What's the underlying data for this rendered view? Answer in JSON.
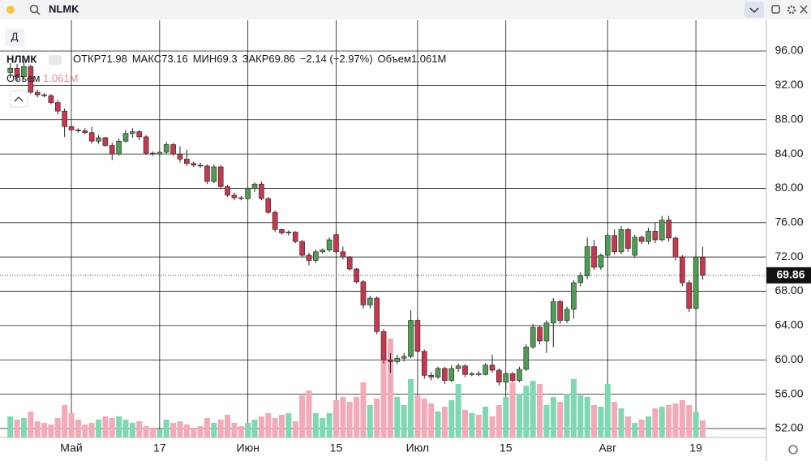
{
  "toolbar": {
    "symbol": "NLMK",
    "interval": "Д"
  },
  "legend": {
    "name": "НЛМК",
    "open_label": "ОТКР",
    "high_label": "МАКС",
    "low_label": "МИН",
    "close_label": "ЗАКР",
    "change": "−2.14 (−2.97%)",
    "volume_label": "Объем",
    "volume_value": "1.061M",
    "volume_pane_label": "Объем",
    "volume_pane_value": "1.061M"
  },
  "chart_data": {
    "type": "candlestick",
    "categories": [
      null,
      null,
      null,
      null,
      null,
      null,
      null,
      null,
      null,
      "Май",
      null,
      null,
      null,
      null,
      null,
      null,
      null,
      null,
      null,
      null,
      null,
      null,
      "17",
      null,
      null,
      null,
      null,
      null,
      null,
      null,
      null,
      null,
      null,
      null,
      null,
      "Июн",
      null,
      null,
      null,
      null,
      null,
      null,
      null,
      null,
      null,
      null,
      null,
      null,
      "15",
      null,
      null,
      null,
      null,
      null,
      null,
      null,
      null,
      null,
      null,
      null,
      "Июл",
      null,
      null,
      null,
      null,
      null,
      null,
      null,
      null,
      null,
      null,
      null,
      null,
      "15",
      null,
      null,
      null,
      null,
      null,
      null,
      null,
      null,
      null,
      null,
      null,
      null,
      null,
      null,
      "Авг",
      null,
      null,
      null,
      null,
      null,
      null,
      null,
      null,
      null,
      null,
      null,
      null,
      "19",
      null
    ],
    "ohlc": [
      [
        93.5,
        94.6,
        92.8,
        94.0
      ],
      [
        94.0,
        94.5,
        92.5,
        93.0
      ],
      [
        93.0,
        94.8,
        92.8,
        94.2
      ],
      [
        94.2,
        94.4,
        91.0,
        91.2
      ],
      [
        91.2,
        91.5,
        90.6,
        90.9
      ],
      [
        90.9,
        91.1,
        90.6,
        90.8
      ],
      [
        90.8,
        91.0,
        89.8,
        90.0
      ],
      [
        90.0,
        90.3,
        88.6,
        89.0
      ],
      [
        89.0,
        89.3,
        86.0,
        87.2
      ],
      [
        87.2,
        87.6,
        86.5,
        86.8
      ],
      [
        86.8,
        87.0,
        86.5,
        86.7
      ],
      [
        86.7,
        87.0,
        86.3,
        86.5
      ],
      [
        86.5,
        87.2,
        85.2,
        85.5
      ],
      [
        85.5,
        86.2,
        85.2,
        85.9
      ],
      [
        85.9,
        86.0,
        84.8,
        85.0
      ],
      [
        85.0,
        85.3,
        83.3,
        84.0
      ],
      [
        84.0,
        85.8,
        83.8,
        85.5
      ],
      [
        85.5,
        86.8,
        85.3,
        86.4
      ],
      [
        86.4,
        87.0,
        85.9,
        86.6
      ],
      [
        86.6,
        86.8,
        85.6,
        86.0
      ],
      [
        86.0,
        86.2,
        83.9,
        84.1
      ],
      [
        84.1,
        84.3,
        83.8,
        84.0
      ],
      [
        84.0,
        84.4,
        83.7,
        84.2
      ],
      [
        84.2,
        85.4,
        84.0,
        85.1
      ],
      [
        85.1,
        85.3,
        83.8,
        84.0
      ],
      [
        84.0,
        84.9,
        83.0,
        83.4
      ],
      [
        83.4,
        84.5,
        82.6,
        82.9
      ],
      [
        82.9,
        83.1,
        82.5,
        82.7
      ],
      [
        82.7,
        83.0,
        82.4,
        82.6
      ],
      [
        82.6,
        82.8,
        80.5,
        80.8
      ],
      [
        80.8,
        82.8,
        80.6,
        82.5
      ],
      [
        82.5,
        82.7,
        80.0,
        80.2
      ],
      [
        80.2,
        80.4,
        79.0,
        79.2
      ],
      [
        79.2,
        79.5,
        78.6,
        78.9
      ],
      [
        78.9,
        79.1,
        78.6,
        78.8
      ],
      [
        78.8,
        80.2,
        78.6,
        80.0
      ],
      [
        80.0,
        80.7,
        79.6,
        80.5
      ],
      [
        80.5,
        80.8,
        78.6,
        78.8
      ],
      [
        78.8,
        79.0,
        77.0,
        77.2
      ],
      [
        77.2,
        77.4,
        74.9,
        75.2
      ],
      [
        75.2,
        75.3,
        74.6,
        74.8
      ],
      [
        74.8,
        75.1,
        74.5,
        74.9
      ],
      [
        74.9,
        75.0,
        73.6,
        73.8
      ],
      [
        73.8,
        74.0,
        72.0,
        72.2
      ],
      [
        72.2,
        72.5,
        71.0,
        71.6
      ],
      [
        71.6,
        72.9,
        71.3,
        72.6
      ],
      [
        72.6,
        73.0,
        72.4,
        72.8
      ],
      [
        72.8,
        74.3,
        72.6,
        74.0
      ],
      [
        74.6,
        75.2,
        72.4,
        72.6
      ],
      [
        72.6,
        73.2,
        71.7,
        72.0
      ],
      [
        72.0,
        72.1,
        70.4,
        70.6
      ],
      [
        70.6,
        70.7,
        68.9,
        69.1
      ],
      [
        69.1,
        69.3,
        66.0,
        66.4
      ],
      [
        66.4,
        67.5,
        66.0,
        67.2
      ],
      [
        67.2,
        67.4,
        63.0,
        63.3
      ],
      [
        63.3,
        63.6,
        59.6,
        60.0
      ],
      [
        60.0,
        60.8,
        58.5,
        59.8
      ],
      [
        59.8,
        60.6,
        59.5,
        60.2
      ],
      [
        60.2,
        60.8,
        59.8,
        60.4
      ],
      [
        60.4,
        65.8,
        60.2,
        64.6
      ],
      [
        64.6,
        65.0,
        60.8,
        61.0
      ],
      [
        61.0,
        61.2,
        57.8,
        58.2
      ],
      [
        58.2,
        58.6,
        57.6,
        58.0
      ],
      [
        58.0,
        59.2,
        57.8,
        59.0
      ],
      [
        59.0,
        59.2,
        57.2,
        57.6
      ],
      [
        57.6,
        59.4,
        57.4,
        59.0
      ],
      [
        59.0,
        59.6,
        58.6,
        59.3
      ],
      [
        59.3,
        59.5,
        58.0,
        58.3
      ],
      [
        58.3,
        58.6,
        58.1,
        58.4
      ],
      [
        58.4,
        58.7,
        58.1,
        58.3
      ],
      [
        58.3,
        59.6,
        58.2,
        59.4
      ],
      [
        59.4,
        60.6,
        58.5,
        58.8
      ],
      [
        58.8,
        59.0,
        57.0,
        57.4
      ],
      [
        57.4,
        58.6,
        56.4,
        58.4
      ],
      [
        58.4,
        58.6,
        57.4,
        57.6
      ],
      [
        57.6,
        59.2,
        57.4,
        58.9
      ],
      [
        58.9,
        61.8,
        58.7,
        61.5
      ],
      [
        61.5,
        64.2,
        61.3,
        63.8
      ],
      [
        63.8,
        64.0,
        61.8,
        62.2
      ],
      [
        62.2,
        64.6,
        60.8,
        64.3
      ],
      [
        64.3,
        67.2,
        61.5,
        66.8
      ],
      [
        66.8,
        67.0,
        64.2,
        64.6
      ],
      [
        64.6,
        66.2,
        64.3,
        65.9
      ],
      [
        65.9,
        69.3,
        64.8,
        69.0
      ],
      [
        69.0,
        70.2,
        68.6,
        69.8
      ],
      [
        69.8,
        74.3,
        69.4,
        73.2
      ],
      [
        73.2,
        74.0,
        70.5,
        70.8
      ],
      [
        70.8,
        72.4,
        70.5,
        72.2
      ],
      [
        72.2,
        74.8,
        72.0,
        74.5
      ],
      [
        74.5,
        75.2,
        72.3,
        72.6
      ],
      [
        72.6,
        75.6,
        72.3,
        75.2
      ],
      [
        75.2,
        75.4,
        72.6,
        73.0
      ],
      [
        72.2,
        74.6,
        71.9,
        74.3
      ],
      [
        74.3,
        74.5,
        73.5,
        73.8
      ],
      [
        73.8,
        75.4,
        73.5,
        75.0
      ],
      [
        75.0,
        76.0,
        73.6,
        74.0
      ],
      [
        74.0,
        76.8,
        73.8,
        76.3
      ],
      [
        76.3,
        76.8,
        73.8,
        74.2
      ],
      [
        74.2,
        74.4,
        71.6,
        72.0
      ],
      [
        72.0,
        72.2,
        68.6,
        69.0
      ],
      [
        69.0,
        69.3,
        65.6,
        66.0
      ],
      [
        66.0,
        72.3,
        65.8,
        72.0
      ],
      [
        71.98,
        73.16,
        69.3,
        69.86
      ]
    ],
    "volume": [
      1.3,
      1.1,
      1.2,
      1.6,
      1.0,
      0.9,
      0.8,
      1.2,
      2.0,
      1.5,
      1.1,
      0.8,
      0.9,
      1.1,
      1.3,
      1.2,
      1.3,
      1.1,
      0.9,
      1.0,
      0.7,
      0.6,
      0.5,
      1.1,
      0.9,
      1.0,
      0.8,
      0.6,
      0.7,
      1.2,
      0.9,
      1.1,
      1.4,
      0.9,
      0.7,
      0.9,
      1.1,
      1.3,
      1.5,
      1.2,
      1.4,
      1.5,
      1.0,
      2.6,
      2.9,
      1.5,
      1.2,
      1.5,
      2.3,
      2.5,
      2.2,
      2.5,
      3.4,
      2.0,
      2.4,
      5.1,
      6.1,
      2.5,
      2.0,
      3.6,
      2.6,
      2.4,
      2.1,
      1.6,
      1.9,
      2.3,
      3.3,
      1.7,
      1.5,
      1.4,
      1.9,
      1.3,
      2.0,
      2.5,
      3.4,
      2.7,
      3.2,
      3.5,
      3.3,
      2.0,
      2.5,
      2.2,
      2.7,
      3.6,
      2.6,
      2.5,
      2.0,
      1.9,
      3.3,
      2.2,
      1.8,
      1.3,
      0.9,
      1.1,
      1.3,
      1.8,
      1.9,
      2.0,
      2.1,
      2.3,
      2.0,
      1.6,
      1.061
    ],
    "up_color": "#4f9d52",
    "down_color": "#c7374d",
    "up_volume_color": "#7ed8b2",
    "down_volume_color": "#f4aab6",
    "ylim": [
      50.96,
      99.59
    ],
    "yticks": [
      {
        "value": 52,
        "label": "52.00"
      },
      {
        "value": 56,
        "label": "56.00"
      },
      {
        "value": 60,
        "label": "60.00"
      },
      {
        "value": 64,
        "label": "64.00"
      },
      {
        "value": 68,
        "label": "68.00"
      },
      {
        "value": 72,
        "label": "72.00"
      },
      {
        "value": 76,
        "label": "76.00"
      },
      {
        "value": 80,
        "label": "80.00"
      },
      {
        "value": 84,
        "label": "84.00"
      },
      {
        "value": 88,
        "label": "88.00"
      },
      {
        "value": 92,
        "label": "92.00"
      },
      {
        "value": 96,
        "label": "96.00"
      }
    ],
    "grid": true
  }
}
